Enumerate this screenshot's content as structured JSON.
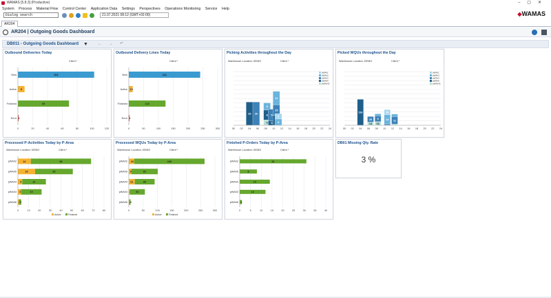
{
  "window": {
    "title": "WAMAS [5.8.3] (Productive)"
  },
  "menu": [
    "System",
    "Process",
    "Material Flow",
    "Control Center",
    "Application Data",
    "Settings",
    "Perspectives",
    "Operations Monitoring",
    "Service",
    "Help"
  ],
  "toolbar": {
    "search_value": "Dialog search",
    "datetime": "21.07.2021 08:12 (GMT+02:00)"
  },
  "logo": {
    "text": "WAMAS"
  },
  "tab": {
    "label": "AR204"
  },
  "header": {
    "title": "AR204 | Outgoing Goods Dashboard"
  },
  "dashboard": {
    "title": "DB011 - Outgoing Goods Dashboard"
  },
  "colors": {
    "blue": "#3a9bd0",
    "orange": "#f4b233",
    "green": "#66a82e",
    "red": "#d9463c",
    "title": "#1b4f8a",
    "dark1": "#1f5f8c",
    "dark2": "#3d82b8",
    "light1": "#6ab4dd",
    "light2": "#a8d6ee",
    "teal": "#b8e0d6"
  },
  "panels": {
    "p1": {
      "title": "Outbound Deliveries Today",
      "client_label": "Client *"
    },
    "p2": {
      "title": "Outbound Delivery Lines Today",
      "client_label": "Client *"
    },
    "p3": {
      "title": "Picking Activities throughout the Day",
      "wh_label": "Warehouse Location: DEMO",
      "client_label": "Client *"
    },
    "p4": {
      "title": "Picked WQUs throughout the Day",
      "wh_label": "Warehouse Location: DEMO",
      "client_label": "Client *"
    },
    "p5": {
      "title": "Processed P-Activities Today by P-Area",
      "wh_label": "Warehouse Location: DEMO",
      "client_label": "Client *"
    },
    "p6": {
      "title": "Processed WQUs Today by P-Area",
      "wh_label": "Warehouse Location: DEMO",
      "client_label": "Client *"
    },
    "p7": {
      "title": "Finished P-Orders Today by P-Area",
      "wh_label": "Warehouse Location: DEMO",
      "client_label": "Client *"
    },
    "p8": {
      "title": "DB01 Missing Qty. Rate",
      "value": "3 %"
    }
  },
  "chart_data": [
    {
      "id": "p1",
      "type": "bar",
      "orientation": "horizontal",
      "categories": [
        "New",
        "Active",
        "Finished",
        "Error"
      ],
      "series": [
        {
          "values": [
            103,
            9,
            69,
            1
          ]
        }
      ],
      "bar_colors": [
        "#3a9bd0",
        "#f4b233",
        "#66a82e",
        "#d9463c"
      ],
      "xticks": [
        0,
        20,
        40,
        60,
        80,
        100,
        120
      ],
      "xlim": [
        0,
        120
      ]
    },
    {
      "id": "p2",
      "type": "bar",
      "orientation": "horizontal",
      "categories": [
        "New",
        "Active",
        "Finished",
        "Error"
      ],
      "series": [
        {
          "values": [
            241,
            13,
            124,
            1
          ]
        }
      ],
      "bar_colors": [
        "#3a9bd0",
        "#f4b233",
        "#66a82e",
        "#d9463c"
      ],
      "xticks": [
        0,
        50,
        100,
        150,
        200,
        250,
        300
      ],
      "xlim": [
        0,
        300
      ]
    },
    {
      "id": "p3",
      "type": "bar",
      "stacked": true,
      "categories": [
        "04",
        "06",
        "08",
        "09",
        "10",
        "11"
      ],
      "series": [
        {
          "name": "pWAh43",
          "values": [
            0,
            0,
            6,
            0,
            0,
            0
          ],
          "color": "#b8e0d6"
        },
        {
          "name": "pWAh5",
          "values": [
            26,
            0,
            11,
            5,
            11,
            0
          ],
          "color": "#1f5f8c"
        },
        {
          "name": "pWAh3",
          "values": [
            0,
            26,
            0,
            13,
            12,
            0
          ],
          "color": "#3d82b8"
        },
        {
          "name": "pWAh2",
          "values": [
            0,
            0,
            8,
            0,
            15,
            7
          ],
          "color": "#6ab4dd"
        },
        {
          "name": "pWAh1",
          "values": [
            0,
            0,
            0,
            0,
            0,
            6
          ],
          "color": "#a8d6ee"
        }
      ],
      "data_labels": [
        [
          "",
          "26",
          "",
          "",
          "",
          ""
        ],
        [
          "",
          "",
          "8",
          "",
          "",
          ""
        ],
        [
          "6",
          "",
          "11",
          "5",
          "15",
          "7"
        ],
        [
          "",
          "",
          "",
          "13",
          "11",
          "6"
        ],
        [
          "",
          "",
          "",
          "",
          "12",
          ""
        ]
      ],
      "xticks": [
        "00",
        "02",
        "04",
        "06",
        "08",
        "10",
        "12",
        "14",
        "16",
        "18",
        "20",
        "22",
        "24"
      ],
      "yticks": [
        0,
        5,
        10,
        15,
        20,
        25,
        30,
        35,
        40,
        45,
        50,
        55,
        60
      ],
      "ylim": [
        0,
        60
      ]
    },
    {
      "id": "p4",
      "type": "bar",
      "stacked": true,
      "categories": [
        "04",
        "06",
        "08",
        "10",
        "12"
      ],
      "series": [
        {
          "name": "pWAh43",
          "values": [
            0,
            14,
            16,
            0,
            5
          ],
          "color": "#b8e0d6"
        },
        {
          "name": "pWAh5",
          "values": [
            116,
            0,
            0,
            0,
            0
          ],
          "color": "#1f5f8c"
        },
        {
          "name": "pWAh4",
          "values": [
            0,
            25,
            26,
            6,
            34
          ],
          "color": "#3d82b8"
        },
        {
          "name": "pWAh3",
          "values": [
            0,
            0,
            9,
            41,
            11
          ],
          "color": "#6ab4dd"
        },
        {
          "name": "pWAh1",
          "values": [
            0,
            0,
            0,
            23,
            0
          ],
          "color": "#a8d6ee"
        }
      ],
      "data_labels": [
        [
          "116",
          "14",
          "16",
          "14",
          ""
        ],
        [
          "",
          "25",
          "26",
          "",
          "5"
        ],
        [
          "",
          "",
          "9",
          "41",
          "11"
        ],
        [
          "",
          "",
          "",
          "23",
          "30"
        ],
        [
          "",
          "",
          "",
          "30",
          ""
        ]
      ],
      "xticks": [
        "00",
        "02",
        "04",
        "06",
        "08",
        "10",
        "12",
        "14",
        "16",
        "18",
        "20",
        "22",
        "24"
      ],
      "yticks": [
        0,
        20,
        40,
        60,
        80,
        100,
        120,
        140,
        160,
        180,
        200,
        220,
        240
      ],
      "ylim": [
        0,
        240
      ]
    },
    {
      "id": "p5",
      "type": "bar",
      "stacked": true,
      "orientation": "horizontal",
      "categories": [
        "pWAh2",
        "pWAh5",
        "pWAh4",
        "pWAh3",
        "pWAh6"
      ],
      "series": [
        {
          "name": "Active",
          "values": [
            12,
            16,
            4,
            3,
            1
          ],
          "color": "#f4b233"
        },
        {
          "name": "Finished",
          "values": [
            56,
            35,
            22,
            19,
            2
          ],
          "color": "#66a82e"
        }
      ],
      "xticks": [
        0,
        10,
        20,
        30,
        40,
        50,
        60,
        70,
        80
      ],
      "xlim": [
        0,
        80
      ]
    },
    {
      "id": "p6",
      "type": "bar",
      "stacked": true,
      "orientation": "horizontal",
      "categories": [
        "pWAh2",
        "pWAh5",
        "pWAh4",
        "pWAh3",
        "pWAh6"
      ],
      "series": [
        {
          "name": "Active",
          "values": [
            19,
            9,
            21,
            4,
            2
          ],
          "color": "#f4b233"
        },
        {
          "name": "Finished",
          "values": [
            245,
            92,
            69,
            52,
            4
          ],
          "color": "#66a82e"
        }
      ],
      "xticks": [
        0,
        50,
        100,
        150,
        200,
        250,
        300
      ],
      "xlim": [
        0,
        300
      ]
    },
    {
      "id": "p7",
      "type": "bar",
      "orientation": "horizontal",
      "categories": [
        "pWAh2",
        "pWAh5",
        "pWAh4",
        "pWAh3",
        "pWAh6"
      ],
      "series": [
        {
          "values": [
            31,
            8,
            14,
            12,
            1
          ]
        }
      ],
      "bar_colors": [
        "#66a82e",
        "#66a82e",
        "#66a82e",
        "#66a82e",
        "#66a82e"
      ],
      "xticks": [
        0,
        5,
        10,
        15,
        20,
        25,
        30,
        35,
        40
      ],
      "xlim": [
        0,
        40
      ]
    }
  ]
}
